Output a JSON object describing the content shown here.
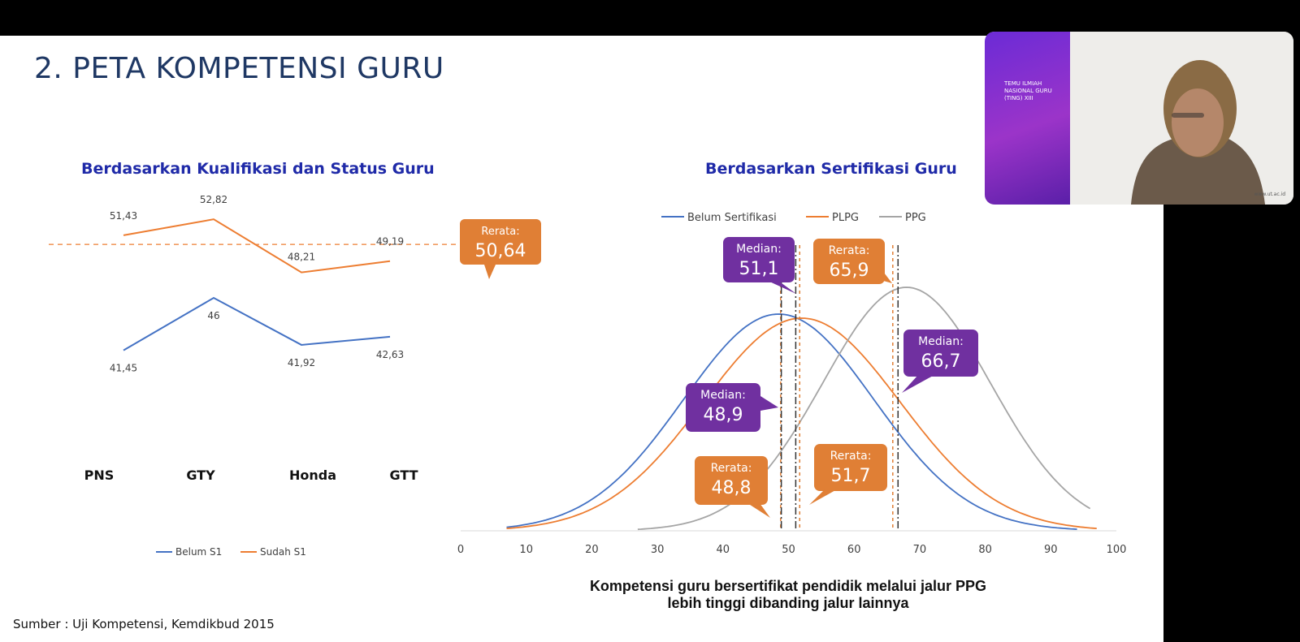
{
  "slide": {
    "title": "2. PETA KOMPETENSI GURU",
    "source": "Sumber : Uji Kompetensi, Kemdikbud 2015",
    "conclusion_line1": "Kompetensi guru bersertifikat pendidik melalui jalur PPG",
    "conclusion_line2": "lebih tinggi dibanding jalur lainnya"
  },
  "colors": {
    "blue": "#4472c4",
    "orange": "#ed7d31",
    "gray": "#a5a5a5",
    "purple": "#7030a0",
    "callout_orange": "#e07f35"
  },
  "chart_data": [
    {
      "type": "line",
      "title": "Berdasarkan Kualifikasi dan Status Guru",
      "categories": [
        "PNS",
        "GTY",
        "Honda",
        "GTT"
      ],
      "series": [
        {
          "name": "Belum S1",
          "values": [
            41.45,
            46,
            41.92,
            42.63
          ],
          "labels": [
            "41,45",
            "46",
            "41,92",
            "42,63"
          ]
        },
        {
          "name": "Sudah S1",
          "values": [
            51.43,
            52.82,
            48.21,
            49.19
          ],
          "labels": [
            "51,43",
            "52,82",
            "48,21",
            "49,19"
          ]
        }
      ],
      "reference_line": {
        "value": 50.64,
        "label_top": "Rerata:",
        "label_value": "50,64"
      },
      "legend": "bottom"
    },
    {
      "type": "line",
      "title": "Berdasarkan Sertifikasi Guru",
      "xlim": [
        0,
        100
      ],
      "xticks": [
        0,
        10,
        20,
        30,
        40,
        50,
        60,
        70,
        80,
        90,
        100
      ],
      "legend": "top",
      "series": [
        {
          "name": "Belum Sertifikasi",
          "mean": 48.8,
          "median": 48.9,
          "mean_label": "48,8",
          "median_label": "48,9",
          "x_range": [
            7,
            94
          ]
        },
        {
          "name": "PLPG",
          "mean": 51.7,
          "median": 51.1,
          "mean_label": "51,7",
          "median_label": "51,1",
          "x_range": [
            7,
            97
          ]
        },
        {
          "name": "PPG",
          "mean": 65.9,
          "median": 66.7,
          "mean_label": "65,9",
          "median_label": "66,7",
          "x_range": [
            27,
            96
          ]
        }
      ],
      "callout_mean_label": "Rerata:",
      "callout_median_label": "Median:"
    }
  ],
  "webcam": {
    "banner_line1": "TEMU ILMIAH",
    "banner_line2": "NASIONAL GURU",
    "banner_line3": "(TING) XIII",
    "brand": "www.ut.ac.id"
  }
}
